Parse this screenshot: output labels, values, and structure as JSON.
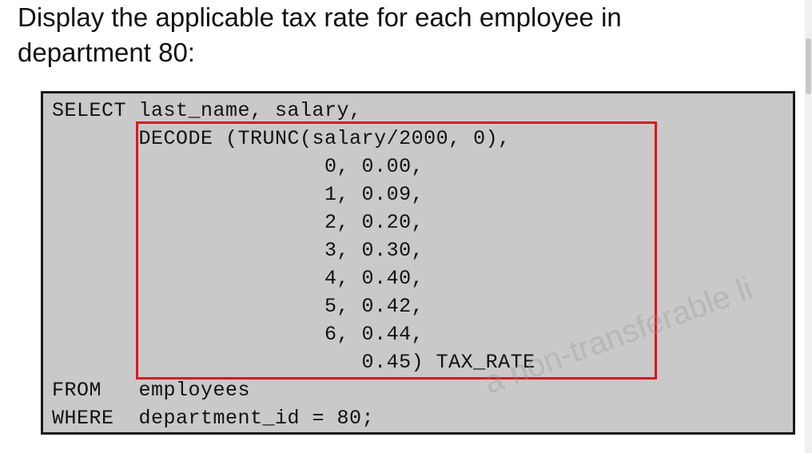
{
  "heading": {
    "line1": "Display the applicable tax rate for each employee in",
    "line2": "department 80:"
  },
  "code": {
    "lines": [
      "SELECT last_name, salary,",
      "       DECODE (TRUNC(salary/2000, 0),",
      "                      0, 0.00,",
      "                      1, 0.09,",
      "                      2, 0.20,",
      "                      3, 0.30,",
      "                      4, 0.40,",
      "                      5, 0.42,",
      "                      6, 0.44,",
      "                         0.45) TAX_RATE",
      "FROM   employees",
      "WHERE  department_id = 80;"
    ]
  },
  "watermark": "a non-transferable li",
  "colors": {
    "panel_bg": "#c9c9c9",
    "highlight": "#e8101a"
  }
}
